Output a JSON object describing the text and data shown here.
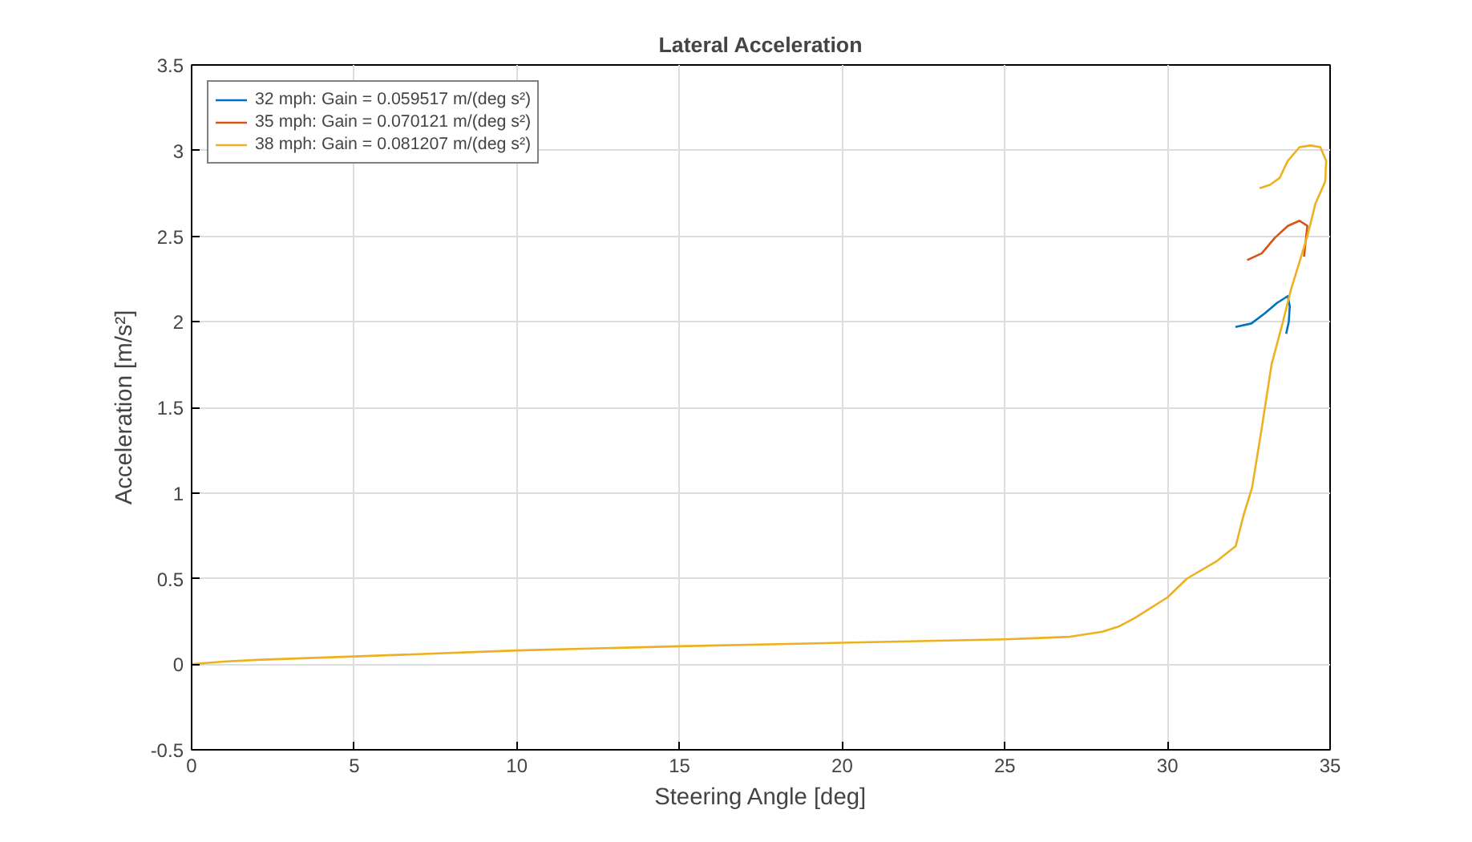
{
  "chart_data": {
    "type": "line",
    "title": "Lateral Acceleration",
    "xlabel": "Steering Angle [deg]",
    "ylabel": "Acceleration [m/s²]",
    "xlim": [
      0,
      35
    ],
    "ylim": [
      -0.5,
      3.5
    ],
    "xticks": [
      0,
      5,
      10,
      15,
      20,
      25,
      30,
      35
    ],
    "yticks": [
      -0.5,
      0,
      0.5,
      1,
      1.5,
      2,
      2.5,
      3,
      3.5
    ],
    "grid": true,
    "legend": "top left",
    "line_style": "solid",
    "marker": "none",
    "series": [
      {
        "name": "32 mph: Gain = 0.059517 m/(deg s²)",
        "color": "#0072bd",
        "x": [
          32.09,
          32.58,
          33.0,
          33.37,
          33.7,
          33.76,
          33.73,
          33.65
        ],
        "values": [
          1.97,
          1.99,
          2.05,
          2.11,
          2.15,
          2.09,
          2.0,
          1.93
        ]
      },
      {
        "name": "35 mph: Gain = 0.070121 m/(deg s²)",
        "color": "#d95319",
        "x": [
          32.45,
          32.9,
          33.3,
          33.7,
          34.06,
          34.3,
          34.26,
          34.2
        ],
        "values": [
          2.36,
          2.4,
          2.49,
          2.56,
          2.59,
          2.56,
          2.49,
          2.38
        ]
      },
      {
        "name": "38 mph: Gain = 0.081207 m/(deg s²)",
        "color": "#edb120",
        "x": [
          0,
          1,
          2,
          5,
          10,
          15,
          20,
          25,
          27,
          28,
          28.5,
          29,
          30,
          30.6,
          31.5,
          32.1,
          32.34,
          32.6,
          32.9,
          33.2,
          33.55,
          33.8,
          34.06,
          34.3,
          34.55,
          34.85,
          34.88,
          34.7,
          34.4,
          34.06,
          33.7,
          33.45,
          33.15,
          32.83
        ],
        "values": [
          0,
          0.015,
          0.025,
          0.045,
          0.08,
          0.105,
          0.125,
          0.145,
          0.16,
          0.19,
          0.22,
          0.27,
          0.39,
          0.5,
          0.6,
          0.69,
          0.87,
          1.03,
          1.38,
          1.75,
          2.0,
          2.19,
          2.35,
          2.5,
          2.69,
          2.82,
          2.94,
          3.02,
          3.03,
          3.02,
          2.94,
          2.84,
          2.8,
          2.78
        ]
      }
    ]
  }
}
